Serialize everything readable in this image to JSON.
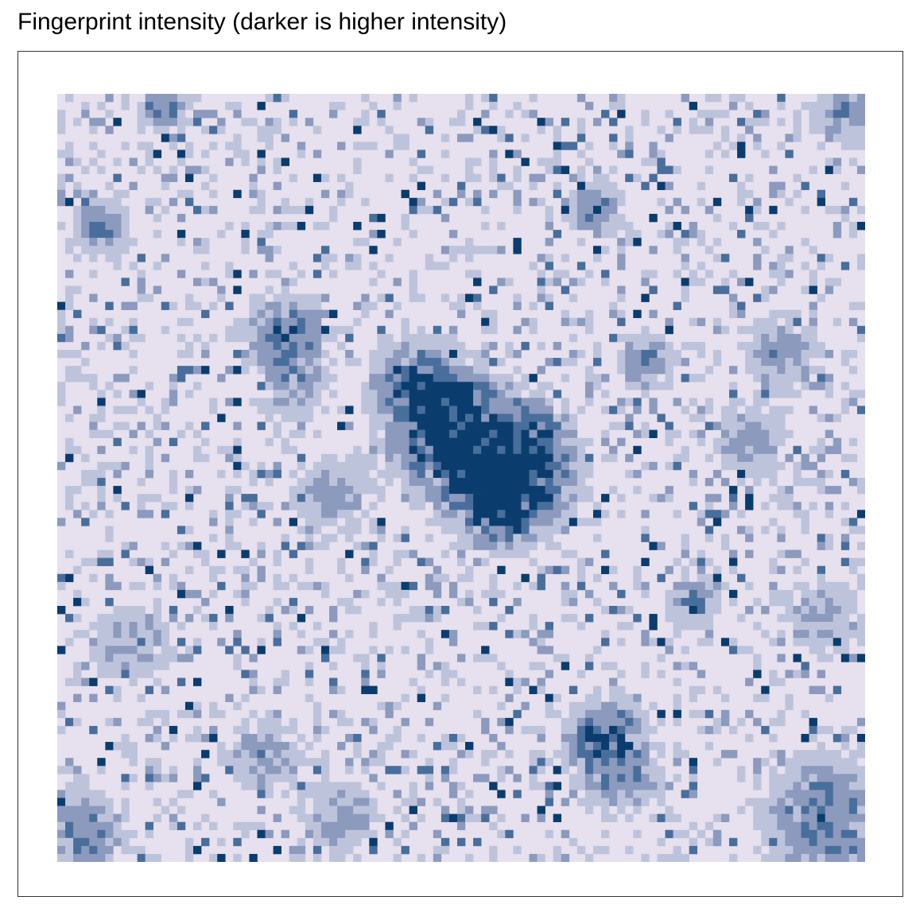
{
  "chart_data": {
    "type": "heatmap",
    "title": "Fingerprint intensity (darker is higher intensity)",
    "xlabel": "",
    "ylabel": "",
    "grid": false,
    "legend": "none",
    "colors": {
      "levels": [
        "#e7e1ef",
        "#bec3dc",
        "#8c9abe",
        "#496e9c",
        "#0b3c6e"
      ],
      "frame": "#333333",
      "title": "#000000"
    },
    "n_cols": 101,
    "n_rows": 96,
    "cell_levels_description": "0 = background (lowest), 4 = darkest (highest)",
    "hotspots": [
      {
        "col": 47,
        "row": 40,
        "strength": 4,
        "radius": 4
      },
      {
        "col": 52,
        "row": 44,
        "strength": 4,
        "radius": 5
      },
      {
        "col": 57,
        "row": 48,
        "strength": 4,
        "radius": 4
      },
      {
        "col": 44,
        "row": 35,
        "strength": 3,
        "radius": 3
      },
      {
        "col": 28,
        "row": 29,
        "strength": 3,
        "radius": 3
      },
      {
        "col": 29,
        "row": 36,
        "strength": 2,
        "radius": 3
      },
      {
        "col": 55,
        "row": 51,
        "strength": 3,
        "radius": 3
      },
      {
        "col": 67,
        "row": 14,
        "strength": 3,
        "radius": 2
      },
      {
        "col": 73,
        "row": 33,
        "strength": 3,
        "radius": 2
      },
      {
        "col": 68,
        "row": 80,
        "strength": 4,
        "radius": 3
      },
      {
        "col": 96,
        "row": 90,
        "strength": 3,
        "radius": 5
      },
      {
        "col": 3,
        "row": 92,
        "strength": 3,
        "radius": 3
      },
      {
        "col": 79,
        "row": 63,
        "strength": 3,
        "radius": 2
      },
      {
        "col": 98,
        "row": 2,
        "strength": 2,
        "radius": 3
      },
      {
        "col": 86,
        "row": 43,
        "strength": 2,
        "radius": 3
      },
      {
        "col": 90,
        "row": 32,
        "strength": 2,
        "radius": 3
      },
      {
        "col": 95,
        "row": 65,
        "strength": 2,
        "radius": 3
      },
      {
        "col": 9,
        "row": 68,
        "strength": 2,
        "radius": 3
      },
      {
        "col": 34,
        "row": 50,
        "strength": 2,
        "radius": 3
      },
      {
        "col": 70,
        "row": 85,
        "strength": 2,
        "radius": 3
      },
      {
        "col": 5,
        "row": 16,
        "strength": 3,
        "radius": 2
      },
      {
        "col": 13,
        "row": 1,
        "strength": 3,
        "radius": 2
      },
      {
        "col": 35,
        "row": 90,
        "strength": 2,
        "radius": 3
      },
      {
        "col": 25,
        "row": 82,
        "strength": 2,
        "radius": 3
      },
      {
        "col": 60,
        "row": 43,
        "strength": 2,
        "radius": 3
      }
    ],
    "speckle_density": 0.3,
    "seed": 1337
  }
}
